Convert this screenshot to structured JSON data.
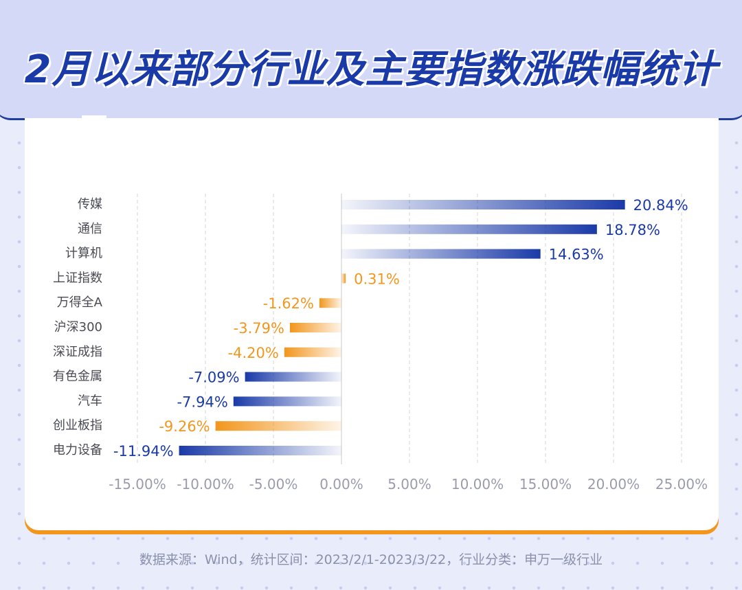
{
  "title": "2月以来部分行业及主要指数涨跌幅统计",
  "source": "数据来源：Wind，统计区间：2023/2/1-2023/3/22，行业分类：申万一级行业",
  "colors": {
    "positive": "#1a3aa8",
    "index": "#f2961d",
    "accent": "#1f3d9c"
  },
  "chart_data": {
    "type": "bar",
    "orientation": "horizontal",
    "title": "2月以来部分行业及主要指数涨跌幅统计",
    "xlabel": "",
    "ylabel": "",
    "xlim": [
      -15,
      25
    ],
    "ticks": [
      "-15.00%",
      "-10.00%",
      "-5.00%",
      "0.00%",
      "5.00%",
      "10.00%",
      "15.00%",
      "20.00%",
      "25.00%"
    ],
    "tick_values": [
      -15,
      -10,
      -5,
      0,
      5,
      10,
      15,
      20,
      25
    ],
    "categories": [
      "传媒",
      "通信",
      "计算机",
      "上证指数",
      "万得全A",
      "沪深300",
      "深证成指",
      "有色金属",
      "汽车",
      "创业板指",
      "电力设备"
    ],
    "values": [
      20.84,
      18.78,
      14.63,
      0.31,
      -1.62,
      -3.79,
      -4.2,
      -7.09,
      -7.94,
      -9.26,
      -11.94
    ],
    "labels": [
      "20.84%",
      "18.78%",
      "14.63%",
      "0.31%",
      "-1.62%",
      "-3.79%",
      "-4.20%",
      "-7.09%",
      "-7.94%",
      "-9.26%",
      "-11.94%"
    ],
    "kinds": [
      "industry",
      "industry",
      "industry",
      "index",
      "index",
      "index",
      "index",
      "industry",
      "industry",
      "index",
      "industry"
    ],
    "grid": true
  }
}
